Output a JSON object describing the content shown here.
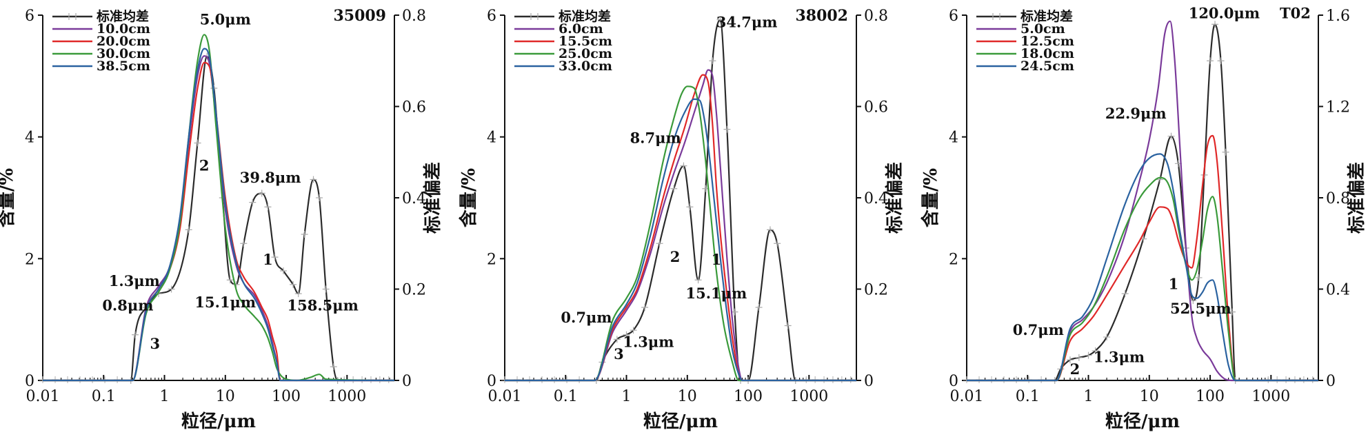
{
  "chart_data": [
    {
      "type": "line",
      "sample_id": "35009",
      "xlabel": "粒径/μm",
      "ylabel": "含量/%",
      "y2label": "标准偏差",
      "xscale": "log",
      "xlim": [
        0.01,
        6000
      ],
      "xticks": [
        "0.01",
        "0.1",
        "1",
        "10",
        "100",
        "1000"
      ],
      "xtick_values": [
        0.01,
        0.1,
        1,
        10,
        100,
        1000
      ],
      "ylim": [
        0,
        6
      ],
      "yticks": [
        "0",
        "2",
        "4",
        "6"
      ],
      "y2lim": [
        0,
        0.8
      ],
      "y2ticks": [
        "0",
        "0.2",
        "0.4",
        "0.6",
        "0.8"
      ],
      "legend_position": "top-left",
      "series": [
        {
          "name": "标准均差",
          "color": "#2b2b2b",
          "axis": "right",
          "x": [
            0.01,
            0.28,
            0.33,
            0.5,
            0.8,
            1.3,
            2.5,
            3.5,
            5.0,
            6.5,
            9,
            12,
            15.1,
            20,
            28,
            39.8,
            50,
            65,
            90,
            130,
            158.5,
            200,
            280,
            350,
            450,
            600,
            700,
            6000
          ],
          "y": [
            0,
            0,
            0.1,
            0.16,
            0.19,
            0.2,
            0.33,
            0.52,
            0.71,
            0.64,
            0.4,
            0.22,
            0.21,
            0.3,
            0.39,
            0.41,
            0.38,
            0.27,
            0.24,
            0.21,
            0.19,
            0.32,
            0.44,
            0.4,
            0.2,
            0.03,
            0,
            0
          ]
        },
        {
          "name": "10.0cm",
          "color": "#7a3a9a",
          "axis": "left",
          "x": [
            0.01,
            0.3,
            0.5,
            0.8,
            1.2,
            1.8,
            2.5,
            3.5,
            4.5,
            5.5,
            7,
            10,
            15,
            20,
            30,
            40,
            50,
            60,
            70,
            80,
            6000
          ],
          "y": [
            0,
            0,
            1.2,
            1.55,
            1.85,
            2.6,
            3.9,
            5.0,
            5.33,
            5.2,
            4.3,
            2.8,
            1.9,
            1.6,
            1.4,
            1.15,
            0.9,
            0.6,
            0.3,
            0,
            0
          ]
        },
        {
          "name": "20.0cm",
          "color": "#e02828",
          "axis": "left",
          "x": [
            0.01,
            0.3,
            0.5,
            0.8,
            1.2,
            1.8,
            2.5,
            3.5,
            4.5,
            5.5,
            7,
            10,
            15,
            20,
            30,
            40,
            50,
            60,
            70,
            80,
            6000
          ],
          "y": [
            0,
            0,
            1.15,
            1.5,
            1.8,
            2.5,
            3.7,
            4.8,
            5.22,
            5.15,
            4.4,
            3.0,
            2.0,
            1.7,
            1.45,
            1.2,
            1.0,
            0.7,
            0.45,
            0,
            0
          ]
        },
        {
          "name": "30.0cm",
          "color": "#3a9a3a",
          "axis": "left",
          "x": [
            0.01,
            0.3,
            0.5,
            0.8,
            1.2,
            1.8,
            2.5,
            3.5,
            4.5,
            5.5,
            7,
            10,
            15,
            20,
            30,
            40,
            50,
            60,
            70,
            100,
            150,
            250,
            350,
            450,
            6000
          ],
          "y": [
            0,
            0,
            1.1,
            1.45,
            1.8,
            2.6,
            4.0,
            5.25,
            5.68,
            5.4,
            4.2,
            2.5,
            1.5,
            1.25,
            1.05,
            0.9,
            0.7,
            0.45,
            0.2,
            0.02,
            0,
            0.05,
            0.1,
            0.02,
            0
          ]
        },
        {
          "name": "38.5cm",
          "color": "#2a62a0",
          "axis": "left",
          "x": [
            0.01,
            0.3,
            0.5,
            0.8,
            1.2,
            1.8,
            2.5,
            3.5,
            4.5,
            5.5,
            7,
            10,
            15,
            20,
            30,
            40,
            50,
            60,
            70,
            80,
            6000
          ],
          "y": [
            0,
            0,
            1.15,
            1.5,
            1.85,
            2.7,
            4.0,
            5.1,
            5.45,
            5.3,
            4.4,
            2.9,
            1.95,
            1.6,
            1.35,
            1.1,
            0.85,
            0.55,
            0.3,
            0,
            0
          ]
        }
      ],
      "annotations": [
        {
          "text": "5.0μm",
          "x": 10,
          "y": 5.85
        },
        {
          "text": "39.8μm",
          "x": 55,
          "y": 3.25
        },
        {
          "text": "1.3μm",
          "x": 0.32,
          "y": 1.55
        },
        {
          "text": "0.8μm",
          "x": 0.25,
          "y": 1.15
        },
        {
          "text": "15.1μm",
          "x": 10,
          "y": 1.2
        },
        {
          "text": "158.5μm",
          "x": 400,
          "y": 1.15
        },
        {
          "text": "1",
          "x": 50,
          "y": 1.9
        },
        {
          "text": "2",
          "x": 4.5,
          "y": 3.45
        },
        {
          "text": "3",
          "x": 0.7,
          "y": 0.52
        }
      ]
    },
    {
      "type": "line",
      "sample_id": "38002",
      "xlabel": "粒径/μm",
      "ylabel": "含量/%",
      "y2label": "标准偏差",
      "xscale": "log",
      "xlim": [
        0.01,
        6000
      ],
      "xticks": [
        "0.01",
        "0.1",
        "1",
        "10",
        "100",
        "1000"
      ],
      "xtick_values": [
        0.01,
        0.1,
        1,
        10,
        100,
        1000
      ],
      "ylim": [
        0,
        6
      ],
      "yticks": [
        "0",
        "2",
        "4",
        "6"
      ],
      "y2lim": [
        0,
        0.8
      ],
      "y2ticks": [
        "0",
        "0.2",
        "0.4",
        "0.6",
        "0.8"
      ],
      "legend_position": "top-left",
      "series": [
        {
          "name": "标准均差",
          "color": "#2b2b2b",
          "axis": "right",
          "x": [
            0.01,
            0.32,
            0.4,
            0.7,
            1.0,
            1.3,
            2.0,
            3.5,
            6,
            8.7,
            11,
            15.1,
            20,
            26,
            34.7,
            45,
            60,
            75,
            100,
            150,
            230,
            300,
            450,
            600,
            6000
          ],
          "y": [
            0,
            0,
            0.04,
            0.09,
            0.1,
            0.11,
            0.16,
            0.3,
            0.42,
            0.47,
            0.38,
            0.22,
            0.42,
            0.7,
            0.79,
            0.55,
            0.15,
            0,
            0,
            0.16,
            0.33,
            0.3,
            0.12,
            0,
            0
          ]
        },
        {
          "name": "6.0cm",
          "color": "#7a3a9a",
          "axis": "left",
          "x": [
            0.01,
            0.3,
            0.6,
            1.0,
            1.5,
            2.5,
            4,
            6,
            9,
            13,
            18,
            22,
            26,
            30,
            35,
            45,
            55,
            70,
            80,
            6000
          ],
          "y": [
            0,
            0,
            0.8,
            1.15,
            1.45,
            2.1,
            2.85,
            3.4,
            3.9,
            4.4,
            4.85,
            5.1,
            5.0,
            4.4,
            3.5,
            2.0,
            1.0,
            0.2,
            0,
            0
          ]
        },
        {
          "name": "15.5cm",
          "color": "#e02828",
          "axis": "left",
          "x": [
            0.01,
            0.3,
            0.6,
            1.0,
            1.5,
            2.5,
            4,
            6,
            9,
            13,
            18,
            22,
            26,
            30,
            35,
            45,
            55,
            70,
            80,
            6000
          ],
          "y": [
            0,
            0,
            0.85,
            1.2,
            1.5,
            2.2,
            3.0,
            3.6,
            4.15,
            4.7,
            5.02,
            4.9,
            4.2,
            3.2,
            2.4,
            1.4,
            0.7,
            0.1,
            0,
            0
          ]
        },
        {
          "name": "25.0cm",
          "color": "#3a9a3a",
          "axis": "left",
          "x": [
            0.01,
            0.3,
            0.6,
            1.0,
            1.5,
            2.5,
            4,
            6,
            8,
            10,
            13,
            16,
            20,
            25,
            30,
            40,
            55,
            70,
            6000
          ],
          "y": [
            0,
            0,
            1.0,
            1.35,
            1.7,
            2.6,
            3.6,
            4.3,
            4.7,
            4.83,
            4.8,
            4.4,
            3.6,
            2.6,
            1.8,
            0.9,
            0.3,
            0,
            0
          ]
        },
        {
          "name": "33.0cm",
          "color": "#2a62a0",
          "axis": "left",
          "x": [
            0.01,
            0.3,
            0.6,
            1.0,
            1.5,
            2.5,
            4,
            6,
            9,
            13,
            16,
            19,
            23,
            28,
            35,
            45,
            55,
            70,
            80,
            6000
          ],
          "y": [
            0,
            0,
            0.9,
            1.25,
            1.6,
            2.4,
            3.3,
            3.95,
            4.4,
            4.62,
            4.6,
            4.3,
            3.7,
            2.9,
            2.0,
            1.1,
            0.5,
            0.1,
            0,
            0
          ]
        }
      ],
      "annotations": [
        {
          "text": "34.7μm",
          "x": 95,
          "y": 5.8
        },
        {
          "text": "8.7μm",
          "x": 3,
          "y": 3.9
        },
        {
          "text": "15.1μm",
          "x": 30,
          "y": 1.35
        },
        {
          "text": "0.7μm",
          "x": 0.22,
          "y": 0.95
        },
        {
          "text": "1.3μm",
          "x": 2.3,
          "y": 0.55
        },
        {
          "text": "1",
          "x": 30,
          "y": 1.9
        },
        {
          "text": "2",
          "x": 6.3,
          "y": 1.95
        },
        {
          "text": "3",
          "x": 0.75,
          "y": 0.35
        }
      ]
    },
    {
      "type": "line",
      "sample_id": "T02",
      "xlabel": "粒径/μm",
      "ylabel": "含量/%",
      "y2label": "标准偏差",
      "xscale": "log",
      "xlim": [
        0.01,
        6000
      ],
      "xticks": [
        "0.01",
        "0.1",
        "1",
        "10",
        "100",
        "1000"
      ],
      "xtick_values": [
        0.01,
        0.1,
        1,
        10,
        100,
        1000
      ],
      "ylim": [
        0,
        6
      ],
      "yticks": [
        "0",
        "2",
        "4",
        "6"
      ],
      "y2lim": [
        0,
        1.6
      ],
      "y2ticks": [
        "0",
        "0.4",
        "0.8",
        "1.2",
        "1.6"
      ],
      "legend_position": "top-left",
      "series": [
        {
          "name": "标准均差",
          "color": "#2b2b2b",
          "axis": "right",
          "x": [
            0.01,
            0.28,
            0.35,
            0.5,
            0.7,
            1.0,
            1.3,
            2.0,
            4,
            8,
            15,
            22.9,
            30,
            40,
            52.5,
            65,
            80,
            100,
            120,
            150,
            180,
            230,
            260,
            6000
          ],
          "y": [
            0,
            0,
            0.05,
            0.09,
            0.1,
            0.11,
            0.13,
            0.19,
            0.38,
            0.62,
            0.88,
            1.07,
            0.95,
            0.58,
            0.35,
            0.45,
            0.9,
            1.4,
            1.56,
            1.4,
            1.0,
            0.3,
            0,
            0
          ]
        },
        {
          "name": "5.0cm",
          "color": "#7a3a9a",
          "axis": "left",
          "x": [
            0.01,
            0.3,
            0.5,
            0.8,
            1.2,
            2,
            4,
            7,
            10,
            14,
            18,
            22,
            26,
            32,
            40,
            50,
            60,
            75,
            100,
            130,
            170,
            220,
            6000
          ],
          "y": [
            0,
            0,
            0.8,
            1.0,
            1.2,
            1.6,
            2.4,
            3.3,
            3.95,
            4.8,
            5.7,
            5.9,
            5.3,
            3.8,
            2.2,
            1.05,
            0.7,
            0.5,
            0.35,
            0.15,
            0.03,
            0,
            0
          ]
        },
        {
          "name": "12.5cm",
          "color": "#e02828",
          "axis": "left",
          "x": [
            0.01,
            0.3,
            0.5,
            0.8,
            1.2,
            2,
            4,
            7,
            10,
            15,
            20,
            25,
            30,
            40,
            50,
            60,
            75,
            90,
            110,
            130,
            160,
            200,
            260,
            6000
          ],
          "y": [
            0,
            0,
            0.65,
            0.85,
            1.05,
            1.4,
            1.9,
            2.3,
            2.6,
            2.85,
            2.82,
            2.6,
            2.3,
            1.95,
            1.85,
            2.3,
            3.2,
            3.85,
            4.02,
            3.6,
            2.4,
            1.0,
            0,
            0
          ]
        },
        {
          "name": "18.0cm",
          "color": "#3a9a3a",
          "axis": "left",
          "x": [
            0.01,
            0.3,
            0.5,
            0.8,
            1.2,
            2,
            4,
            7,
            10,
            15,
            20,
            25,
            30,
            40,
            50,
            60,
            75,
            90,
            110,
            130,
            160,
            200,
            260,
            6000
          ],
          "y": [
            0,
            0,
            0.75,
            0.95,
            1.2,
            1.7,
            2.5,
            3.0,
            3.2,
            3.33,
            3.25,
            2.95,
            2.5,
            1.9,
            1.65,
            1.8,
            2.3,
            2.8,
            3.02,
            2.7,
            1.8,
            0.8,
            0,
            0
          ]
        },
        {
          "name": "24.5cm",
          "color": "#2a62a0",
          "axis": "left",
          "x": [
            0.01,
            0.3,
            0.5,
            0.8,
            1.2,
            2,
            4,
            7,
            10,
            15,
            20,
            25,
            30,
            40,
            50,
            60,
            75,
            90,
            110,
            130,
            160,
            200,
            260,
            6000
          ],
          "y": [
            0,
            0,
            0.85,
            1.05,
            1.35,
            2.0,
            2.9,
            3.45,
            3.65,
            3.72,
            3.55,
            3.1,
            2.6,
            1.9,
            1.4,
            1.35,
            1.45,
            1.6,
            1.65,
            1.4,
            0.8,
            0.25,
            0,
            0
          ]
        }
      ],
      "annotations": [
        {
          "text": "120.0μm",
          "x": 170,
          "y": 5.95
        },
        {
          "text": "T02",
          "x": 2500,
          "y": 5.95
        },
        {
          "text": "22.9μm",
          "x": 6,
          "y": 4.3
        },
        {
          "text": "52.5μm",
          "x": 70,
          "y": 1.1
        },
        {
          "text": "0.7μm",
          "x": 0.15,
          "y": 0.75
        },
        {
          "text": "1.3μm",
          "x": 3.2,
          "y": 0.3
        },
        {
          "text": "1",
          "x": 25,
          "y": 1.5
        },
        {
          "text": "2",
          "x": 0.6,
          "y": 0.1
        }
      ]
    }
  ]
}
